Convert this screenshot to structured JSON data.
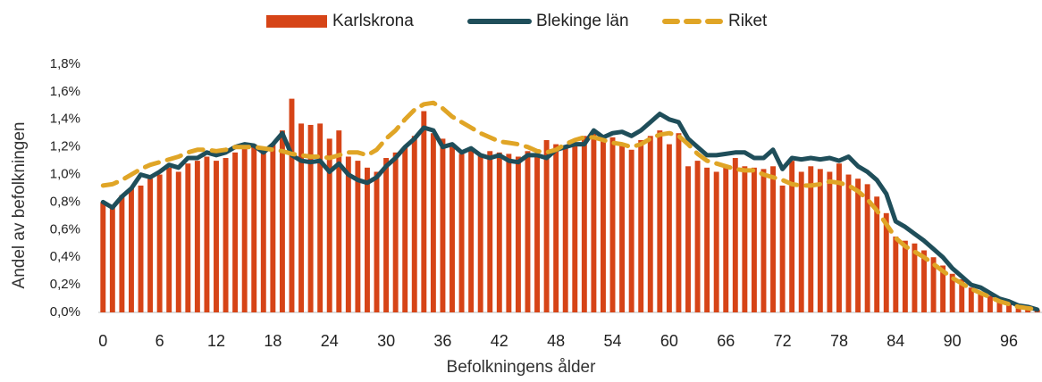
{
  "chart_data": {
    "type": "bar_line",
    "x_label": "Befolkningens ålder",
    "y_label": "Andel av befolkningen",
    "x": [
      0,
      1,
      2,
      3,
      4,
      5,
      6,
      7,
      8,
      9,
      10,
      11,
      12,
      13,
      14,
      15,
      16,
      17,
      18,
      19,
      20,
      21,
      22,
      23,
      24,
      25,
      26,
      27,
      28,
      29,
      30,
      31,
      32,
      33,
      34,
      35,
      36,
      37,
      38,
      39,
      40,
      41,
      42,
      43,
      44,
      45,
      46,
      47,
      48,
      49,
      50,
      51,
      52,
      53,
      54,
      55,
      56,
      57,
      58,
      59,
      60,
      61,
      62,
      63,
      64,
      65,
      66,
      67,
      68,
      69,
      70,
      71,
      72,
      73,
      74,
      75,
      76,
      77,
      78,
      79,
      80,
      81,
      82,
      83,
      84,
      85,
      86,
      87,
      88,
      89,
      90,
      91,
      92,
      93,
      94,
      95,
      96,
      97,
      98,
      99
    ],
    "xlim": [
      -0.5,
      99.5
    ],
    "xticks": [
      0,
      6,
      12,
      18,
      24,
      30,
      36,
      42,
      48,
      54,
      60,
      66,
      72,
      78,
      84,
      90,
      96
    ],
    "ylim": [
      0,
      1.8
    ],
    "yticks": [
      {
        "value": 0,
        "label": "0,0%"
      },
      {
        "value": 0.2,
        "label": "0,2%"
      },
      {
        "value": 0.4,
        "label": "0,4%"
      },
      {
        "value": 0.6,
        "label": "0,6%"
      },
      {
        "value": 0.8,
        "label": "0,8%"
      },
      {
        "value": 1.0,
        "label": "1,0%"
      },
      {
        "value": 1.2,
        "label": "1,2%"
      },
      {
        "value": 1.4,
        "label": "1,4%"
      },
      {
        "value": 1.6,
        "label": "1,6%"
      },
      {
        "value": 1.8,
        "label": "1,8%"
      }
    ],
    "grid": false,
    "legend": "top",
    "series": [
      {
        "name": "Karlskrona",
        "kind": "bar",
        "color": "#d64417",
        "values": [
          0.8,
          0.78,
          0.85,
          0.9,
          0.92,
          0.97,
          1.0,
          1.05,
          1.02,
          1.08,
          1.1,
          1.13,
          1.1,
          1.12,
          1.16,
          1.2,
          1.22,
          1.2,
          1.22,
          1.32,
          1.55,
          1.37,
          1.36,
          1.37,
          1.26,
          1.32,
          1.13,
          1.1,
          1.05,
          1.02,
          1.12,
          1.16,
          1.2,
          1.28,
          1.46,
          1.3,
          1.26,
          1.22,
          1.15,
          1.18,
          1.14,
          1.17,
          1.16,
          1.15,
          1.13,
          1.17,
          1.15,
          1.25,
          1.22,
          1.2,
          1.21,
          1.28,
          1.3,
          1.24,
          1.27,
          1.22,
          1.18,
          1.25,
          1.28,
          1.32,
          1.22,
          1.3,
          1.06,
          1.1,
          1.05,
          1.02,
          1.06,
          1.12,
          1.06,
          1.05,
          1.04,
          1.06,
          0.92,
          1.1,
          1.02,
          1.06,
          1.04,
          1.02,
          1.08,
          1.0,
          0.97,
          0.93,
          0.84,
          0.72,
          0.55,
          0.52,
          0.5,
          0.45,
          0.4,
          0.34,
          0.28,
          0.24,
          0.18,
          0.15,
          0.12,
          0.09,
          0.07,
          0.05,
          0.03,
          0.02
        ]
      },
      {
        "name": "Blekinge län",
        "kind": "line",
        "color": "#1f4e5a",
        "values": [
          0.8,
          0.76,
          0.84,
          0.9,
          1.0,
          0.98,
          1.02,
          1.07,
          1.05,
          1.12,
          1.12,
          1.16,
          1.14,
          1.16,
          1.2,
          1.22,
          1.21,
          1.16,
          1.22,
          1.3,
          1.14,
          1.1,
          1.09,
          1.1,
          1.02,
          1.08,
          1.0,
          0.96,
          0.94,
          0.98,
          1.06,
          1.12,
          1.2,
          1.26,
          1.34,
          1.32,
          1.2,
          1.22,
          1.16,
          1.19,
          1.14,
          1.12,
          1.14,
          1.1,
          1.09,
          1.14,
          1.14,
          1.12,
          1.18,
          1.2,
          1.22,
          1.22,
          1.32,
          1.27,
          1.3,
          1.31,
          1.28,
          1.32,
          1.38,
          1.44,
          1.4,
          1.38,
          1.26,
          1.2,
          1.14,
          1.14,
          1.15,
          1.16,
          1.16,
          1.12,
          1.12,
          1.18,
          1.04,
          1.12,
          1.11,
          1.12,
          1.11,
          1.12,
          1.1,
          1.13,
          1.06,
          1.02,
          0.96,
          0.86,
          0.66,
          0.62,
          0.57,
          0.52,
          0.46,
          0.4,
          0.32,
          0.26,
          0.2,
          0.18,
          0.14,
          0.1,
          0.08,
          0.05,
          0.04,
          0.02
        ]
      },
      {
        "name": "Riket",
        "kind": "dashed",
        "color": "#e0a526",
        "values": [
          0.92,
          0.93,
          0.96,
          1.0,
          1.04,
          1.07,
          1.09,
          1.11,
          1.13,
          1.16,
          1.18,
          1.18,
          1.17,
          1.18,
          1.2,
          1.2,
          1.2,
          1.19,
          1.18,
          1.17,
          1.15,
          1.14,
          1.13,
          1.13,
          1.12,
          1.14,
          1.16,
          1.16,
          1.14,
          1.18,
          1.26,
          1.32,
          1.4,
          1.47,
          1.51,
          1.52,
          1.48,
          1.42,
          1.38,
          1.34,
          1.3,
          1.27,
          1.24,
          1.23,
          1.22,
          1.2,
          1.17,
          1.16,
          1.18,
          1.22,
          1.25,
          1.27,
          1.27,
          1.25,
          1.23,
          1.22,
          1.2,
          1.22,
          1.26,
          1.29,
          1.3,
          1.28,
          1.22,
          1.15,
          1.1,
          1.08,
          1.06,
          1.04,
          1.03,
          1.03,
          1.0,
          0.98,
          0.96,
          0.93,
          0.92,
          0.92,
          0.93,
          0.95,
          0.94,
          0.92,
          0.88,
          0.82,
          0.74,
          0.64,
          0.54,
          0.48,
          0.44,
          0.4,
          0.35,
          0.3,
          0.25,
          0.21,
          0.17,
          0.14,
          0.11,
          0.08,
          0.06,
          0.04,
          0.03,
          0.02
        ]
      }
    ]
  }
}
